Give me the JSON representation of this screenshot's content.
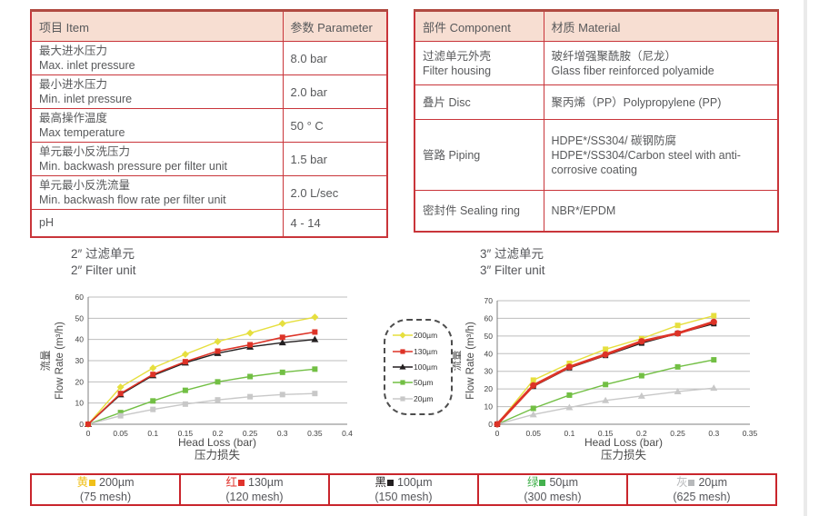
{
  "item_table": {
    "headers": [
      "项目 Item",
      "参数 Parameter"
    ],
    "rows": [
      {
        "zh": "最大进水压力",
        "en": "Max. inlet pressure",
        "value": "8.0 bar"
      },
      {
        "zh": "最小进水压力",
        "en": "Min. inlet pressure",
        "value": "2.0 bar"
      },
      {
        "zh": "最高操作温度",
        "en": "Max temperature",
        "value": "50 ° C"
      },
      {
        "zh": "单元最小反洗压力",
        "en": "Min. backwash pressure per filter unit",
        "value": "1.5 bar"
      },
      {
        "zh": "单元最小反洗流量",
        "en": "Min. backwash flow rate per filter unit",
        "value": "2.0 L/sec"
      },
      {
        "zh": "pH",
        "en": "",
        "value": "4 - 14"
      }
    ]
  },
  "component_table": {
    "headers": [
      "部件 Component",
      "材质 Material"
    ],
    "rows": [
      {
        "zh": "过滤单元外壳",
        "en": "Filter housing",
        "mat_zh": "玻纤增强聚酰胺（尼龙）",
        "mat_en": "Glass fiber reinforced polyamide"
      },
      {
        "zh": "叠片 Disc",
        "en": "",
        "mat_zh": "聚丙烯（PP）Polypropylene (PP)",
        "mat_en": ""
      },
      {
        "zh": "管路 Piping",
        "en": "",
        "mat_zh": "HDPE*/SS304/ 碳钢防腐",
        "mat_en": "HDPE*/SS304/Carbon steel with anti-corrosive coating"
      },
      {
        "zh": "密封件 Sealing ring",
        "en": "",
        "mat_zh": "NBR*/EPDM",
        "mat_en": ""
      }
    ]
  },
  "chart_data": [
    {
      "type": "line",
      "title_zh": "2″ 过滤单元",
      "title_en": "2″ Filter unit",
      "xlabel": "Head Loss (bar)",
      "xlabel_zh": "压力损失",
      "ylabel_zh": "流量",
      "ylabel": "Flow Rate (m³/h)",
      "xlim": [
        0,
        0.4
      ],
      "ylim": [
        0,
        60
      ],
      "ytick_step": 10,
      "xticks": [
        0,
        0.05,
        0.1,
        0.15,
        0.2,
        0.25,
        0.3,
        0.35,
        0.4
      ],
      "x": [
        0,
        0.05,
        0.1,
        0.15,
        0.2,
        0.25,
        0.3,
        0.35
      ],
      "grid": true,
      "series": [
        {
          "name": "200µm",
          "color": "#e6df3e",
          "marker": "diamond",
          "width": 1.4,
          "values": [
            0,
            17.5,
            26.5,
            33,
            39,
            43,
            47.5,
            50.5
          ]
        },
        {
          "name": "50µm",
          "color": "#72bf44",
          "marker": "square",
          "width": 1.4,
          "values": [
            0,
            5.5,
            11,
            16,
            20,
            22.5,
            24.5,
            26
          ]
        },
        {
          "name": "20µm",
          "color": "#c8c8c8",
          "marker": "square",
          "width": 1.4,
          "values": [
            0,
            4,
            7,
            9.5,
            11.5,
            13,
            14,
            14.5
          ]
        },
        {
          "name": "100µm",
          "color": "#231f20",
          "marker": "triangle",
          "width": 1.4,
          "values": [
            0,
            14,
            23,
            29,
            33.5,
            36.5,
            38.5,
            40
          ]
        },
        {
          "name": "130µm",
          "color": "#dd3327",
          "marker": "square",
          "width": 1.6,
          "values": [
            0,
            14.5,
            23.5,
            29.5,
            34.5,
            37.5,
            41,
            43.5
          ]
        }
      ]
    },
    {
      "type": "line",
      "title_zh": "3″ 过滤单元",
      "title_en": "3″ Filter unit",
      "xlabel": "Head Loss (bar)",
      "xlabel_zh": "压力损失",
      "ylabel_zh": "流量",
      "ylabel": "Flow Rate (m³/h)",
      "xlim": [
        0,
        0.35
      ],
      "ylim": [
        0,
        70
      ],
      "ytick_step": 10,
      "xticks": [
        0,
        0.05,
        0.1,
        0.15,
        0.2,
        0.25,
        0.3,
        0.35
      ],
      "x": [
        0,
        0.05,
        0.1,
        0.15,
        0.2,
        0.25,
        0.3
      ],
      "grid": true,
      "series": [
        {
          "name": "200µm",
          "color": "#e6df3e",
          "marker": "square",
          "width": 1.4,
          "values": [
            0,
            25,
            34.5,
            42.5,
            48.5,
            56,
            61.5
          ]
        },
        {
          "name": "50µm",
          "color": "#72bf44",
          "marker": "square",
          "width": 1.4,
          "values": [
            0,
            9,
            16.5,
            22.5,
            27.5,
            32.5,
            36.5
          ]
        },
        {
          "name": "20µm",
          "color": "#c8c8c8",
          "marker": "triangle",
          "width": 1.4,
          "values": [
            0,
            5.5,
            9.5,
            13.5,
            16,
            18.5,
            20.5
          ]
        },
        {
          "name": "100µm",
          "color": "#231f20",
          "marker": "square",
          "width": 1.6,
          "values": [
            0,
            21.5,
            32,
            39,
            46,
            51.5,
            57
          ]
        },
        {
          "name": "130µm",
          "color": "#dd3327",
          "marker": "circle",
          "width": 2.8,
          "values": [
            0,
            22,
            32.5,
            39.5,
            47,
            51.5,
            58
          ]
        }
      ]
    }
  ],
  "legend": {
    "items": [
      {
        "label": "200µm",
        "color": "#e6df3e",
        "marker": "diamond"
      },
      {
        "label": "130µm",
        "color": "#dd3327",
        "marker": "square"
      },
      {
        "label": "100µm",
        "color": "#231f20",
        "marker": "triangle"
      },
      {
        "label": "50µm",
        "color": "#72bf44",
        "marker": "square"
      },
      {
        "label": "20µm",
        "color": "#c8c8c8",
        "marker": "square"
      }
    ]
  },
  "mesh_table": {
    "cells": [
      {
        "word": "黄",
        "color": "#f0c019",
        "size": "200µm",
        "mesh": "(75 mesh)"
      },
      {
        "word": "红",
        "color": "#e0332c",
        "size": "130µm",
        "mesh": "(120 mesh)"
      },
      {
        "word": "黑",
        "color": "#231f20",
        "size": "100µm",
        "mesh": "(150 mesh)"
      },
      {
        "word": "绿",
        "color": "#44b14e",
        "size": "50µm",
        "mesh": "(300 mesh)"
      },
      {
        "word": "灰",
        "color": "#b7b9bb",
        "size": "20µm",
        "mesh": "(625 mesh)"
      }
    ]
  }
}
